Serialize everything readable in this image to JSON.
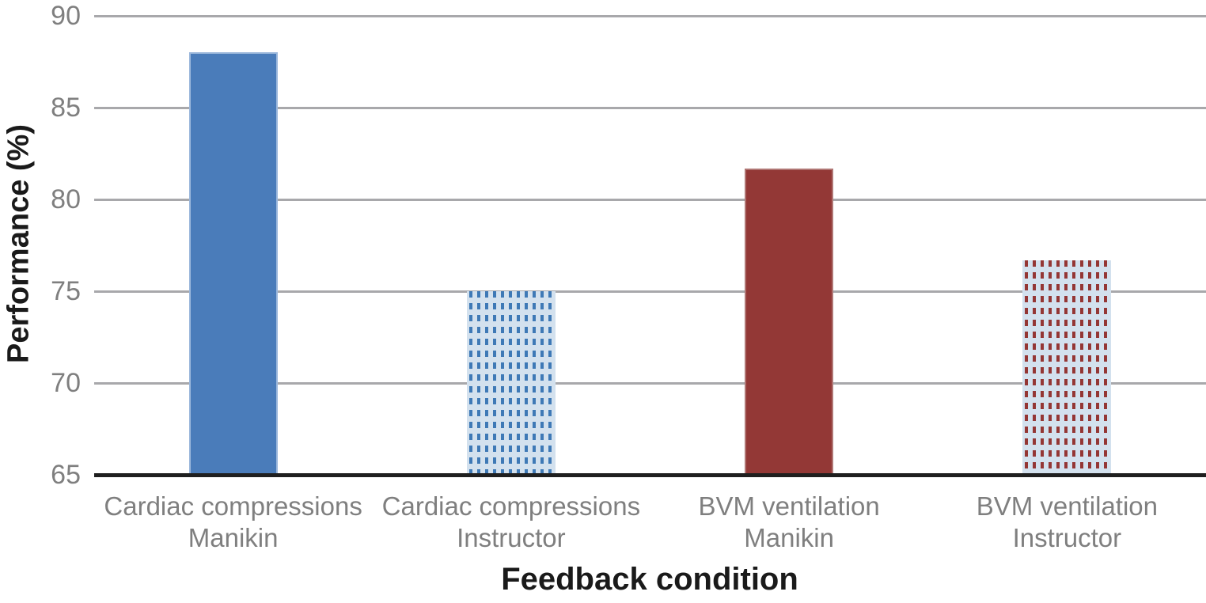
{
  "chart_data": {
    "type": "bar",
    "title": "",
    "xlabel": "Feedback condition",
    "ylabel": "Performance (%)",
    "ylim": [
      65,
      90
    ],
    "yticks": [
      90,
      85,
      80,
      75,
      70,
      65
    ],
    "grid": true,
    "legend_position": "none",
    "categories": [
      "Cardiac compressions\nManikin",
      "Cardiac compressions\nInstructor",
      "BVM ventilation\nManikin",
      "BVM ventilation\nInstructor"
    ],
    "values": [
      88.0,
      75.0,
      81.7,
      76.7
    ],
    "bar_styles": [
      "solid-blue",
      "pattern-blue-dash",
      "solid-red",
      "pattern-red-dash"
    ]
  },
  "colors": {
    "solid_blue": "#4a7cba",
    "solid_blue_border": "#9cb8dc",
    "solid_red": "#933836",
    "solid_red_border": "#af7573",
    "pattern_bg": "#d3e1ee",
    "pattern_blue_fg": "#3e79b6",
    "pattern_red_fg": "#943634",
    "gridline": "#a8a8ab",
    "axis_line": "#1f1f1f",
    "tick_label": "#7f7f7f",
    "axis_title": "#1a1a1a",
    "background": "#ffffff"
  }
}
